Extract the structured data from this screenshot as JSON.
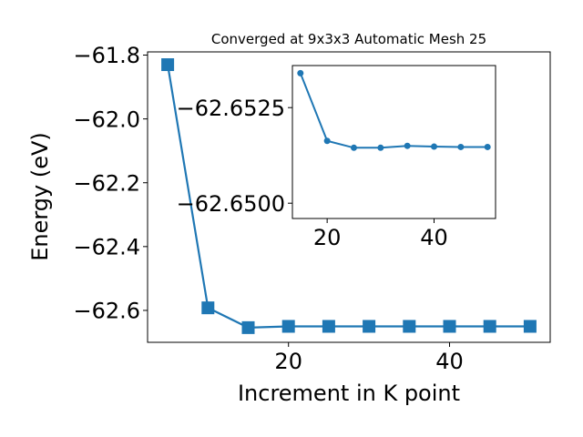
{
  "chart_data": [
    {
      "type": "line",
      "title": "Converged at 9x3x3 Automatic Mesh 25",
      "xlabel": "Increment in K point",
      "ylabel": "Energy (eV)",
      "x": [
        5,
        10,
        15,
        20,
        25,
        30,
        35,
        40,
        45,
        50
      ],
      "series": [
        {
          "values": [
            -61.83,
            -62.592,
            -62.654,
            -62.65,
            -62.65,
            -62.65,
            -62.65,
            -62.65,
            -62.65,
            -62.65
          ]
        }
      ],
      "xlim": [
        2.5,
        52.5
      ],
      "ylim": [
        -62.7,
        -61.79
      ],
      "xticks": [
        20,
        40
      ],
      "xtick_labels": [
        "20",
        "40"
      ],
      "yticks": [
        -61.8,
        -62.0,
        -62.2,
        -62.4,
        -62.6
      ],
      "ytick_labels": [
        "−61.8",
        "−62.0",
        "−62.2",
        "−62.4",
        "−62.6"
      ],
      "marker": "square",
      "color": "#1f77b4",
      "grid": false
    },
    {
      "type": "line",
      "title": "",
      "xlabel": "",
      "ylabel": "",
      "x": [
        15,
        20,
        25,
        30,
        35,
        40,
        45,
        50
      ],
      "series": [
        {
          "values": [
            -62.6534,
            -62.65163,
            -62.65145,
            -62.65145,
            -62.6515,
            -62.65148,
            -62.65147,
            -62.65147
          ]
        }
      ],
      "xlim": [
        13.5,
        51.5
      ],
      "ylim": [
        -62.6496,
        -62.6536
      ],
      "xticks": [
        20,
        40
      ],
      "xtick_labels": [
        "20",
        "40"
      ],
      "yticks": [
        -62.6525,
        -62.65
      ],
      "ytick_labels": [
        "−62.6525",
        "−62.6500"
      ],
      "marker": "circle",
      "color": "#1f77b4",
      "grid": false
    }
  ]
}
